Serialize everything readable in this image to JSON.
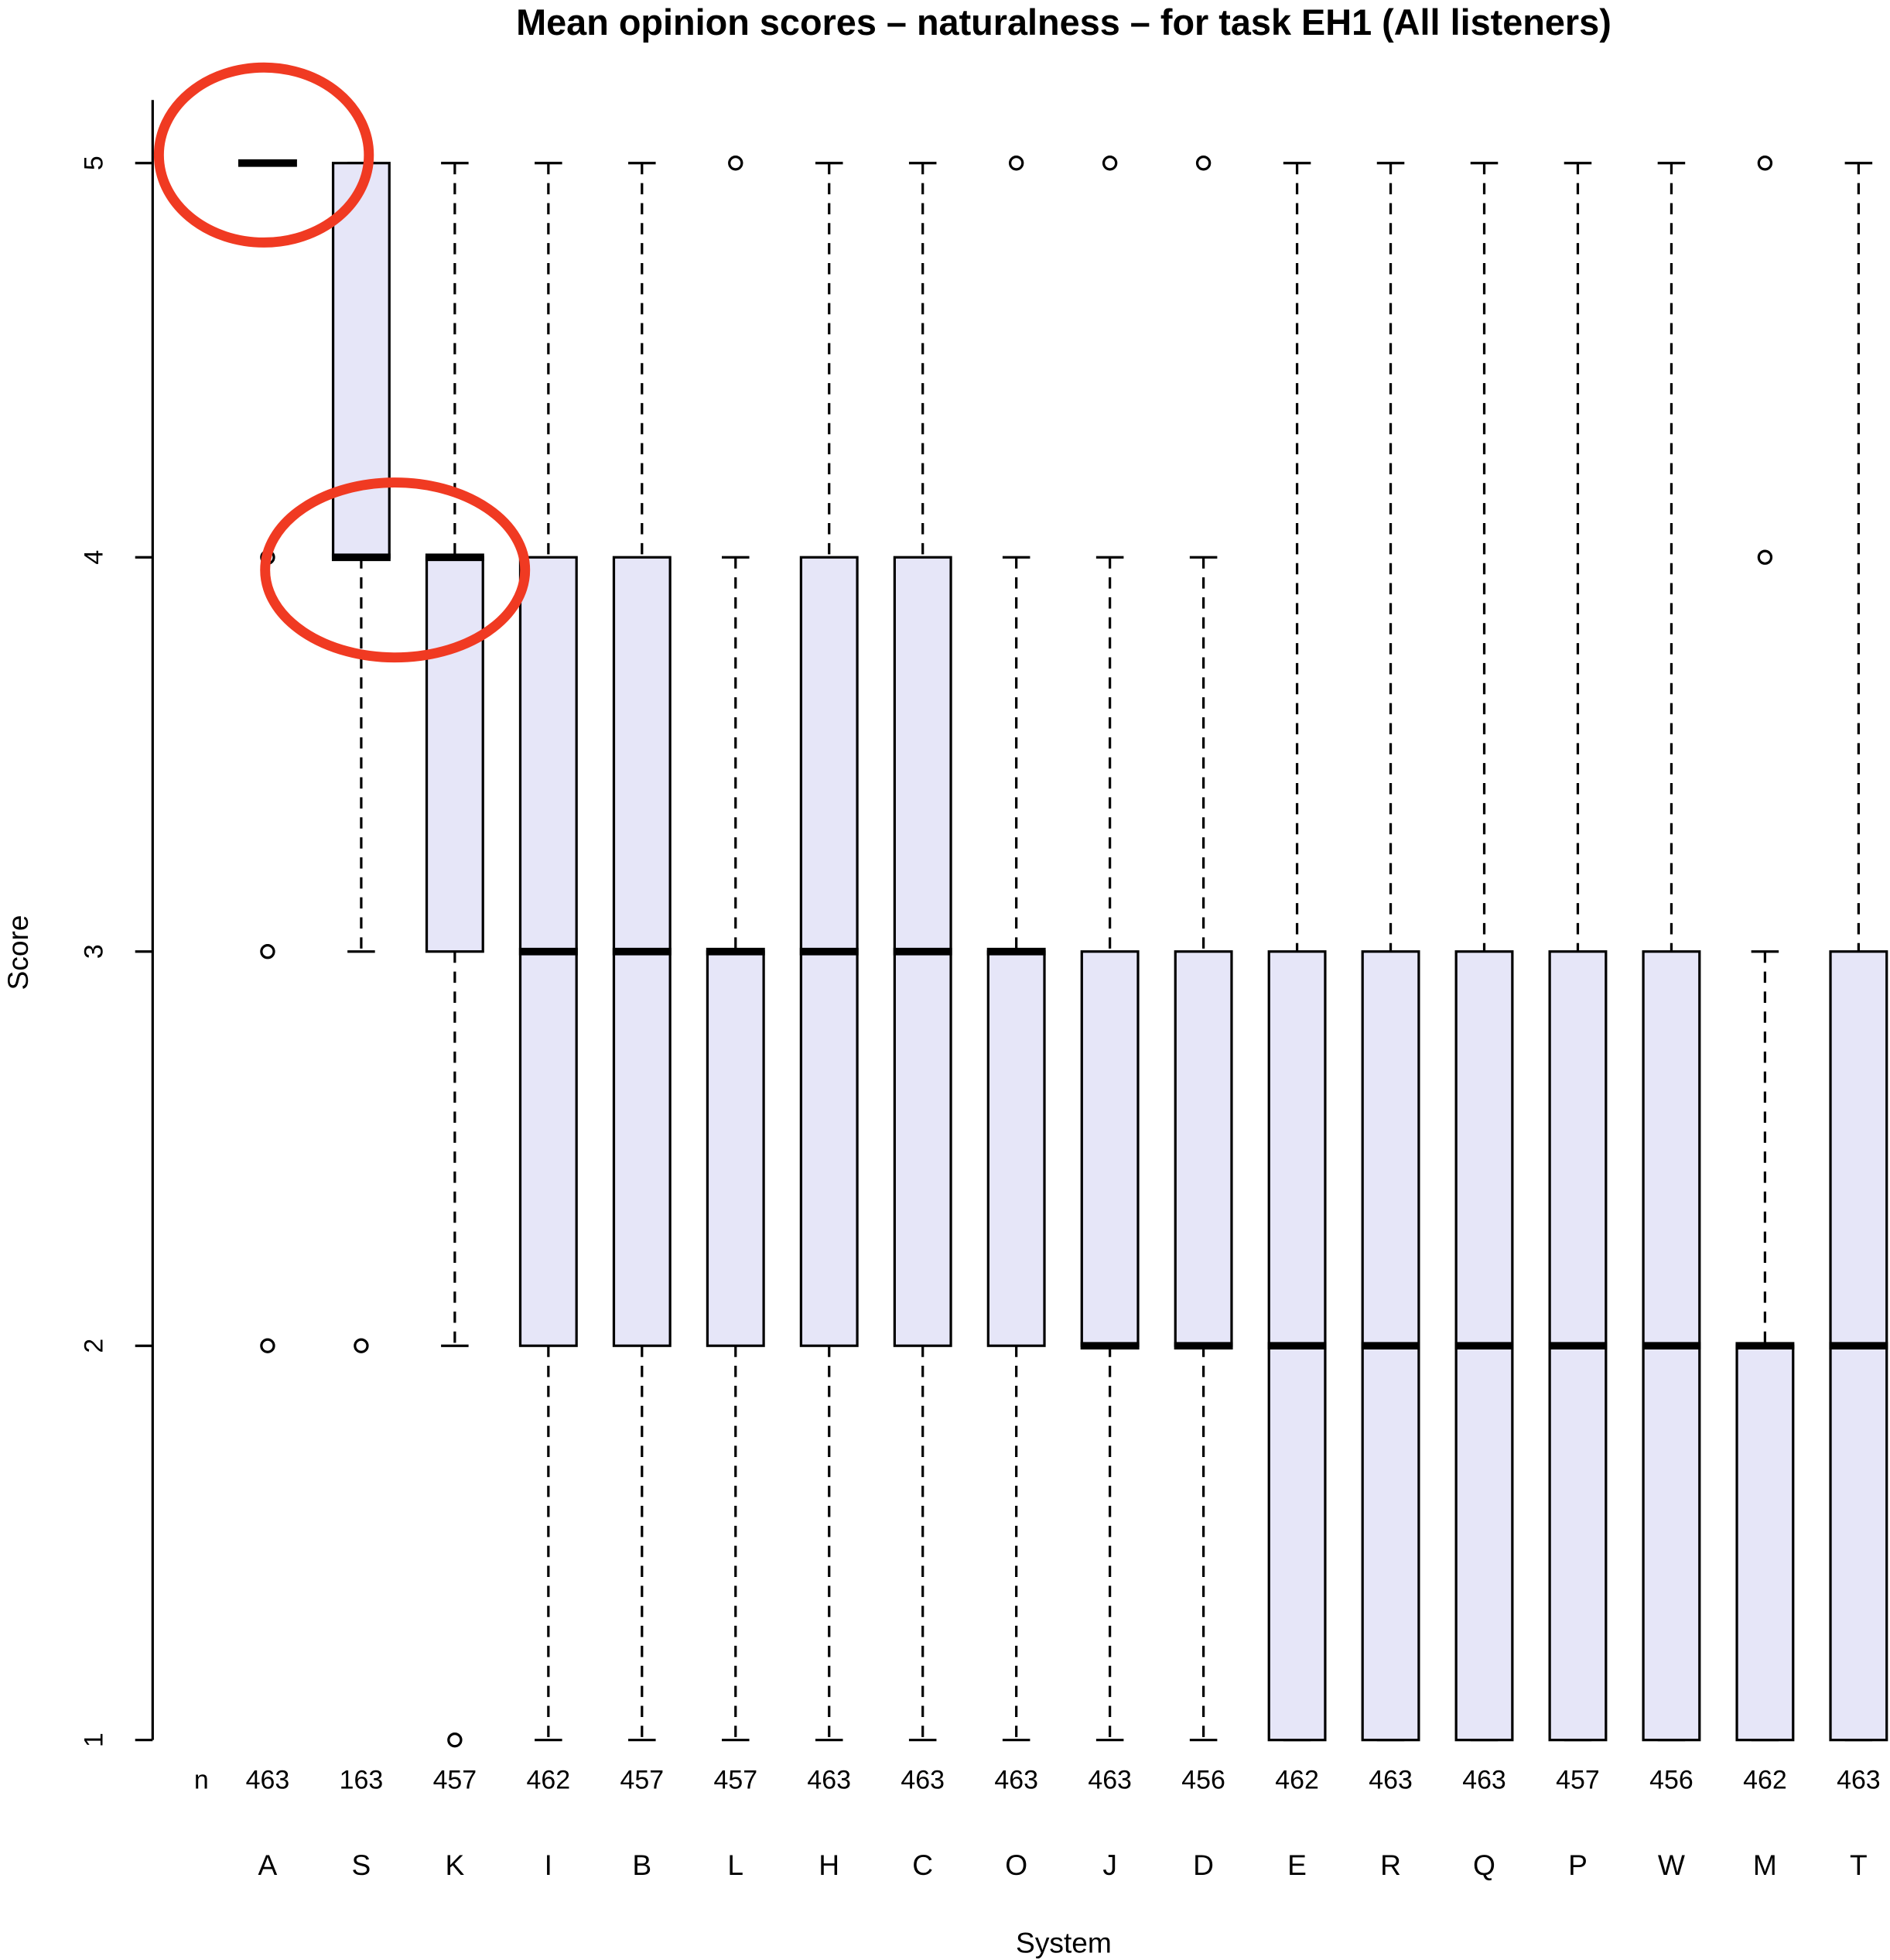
{
  "chart_data": {
    "type": "boxplot",
    "title": "Mean opinion scores – naturalness –  for task EH1 (All listeners)",
    "xlabel": "System",
    "ylabel": "Score",
    "ylim": [
      1,
      5.16
    ],
    "yticks": [
      1,
      2,
      3,
      4,
      5
    ],
    "count_label": "n",
    "categories": [
      "A",
      "S",
      "K",
      "I",
      "B",
      "L",
      "H",
      "C",
      "O",
      "J",
      "D",
      "E",
      "R",
      "Q",
      "P",
      "W",
      "M",
      "T"
    ],
    "counts": [
      463,
      163,
      457,
      462,
      457,
      457,
      463,
      463,
      463,
      463,
      456,
      462,
      463,
      463,
      457,
      456,
      462,
      463
    ],
    "box_color": "#e6e6f8",
    "boxes": [
      {
        "low": 5,
        "q1": 5,
        "median": 5,
        "q3": 5,
        "high": 5,
        "outliers": [
          4,
          3,
          2
        ]
      },
      {
        "low": 3,
        "q1": 4,
        "median": 4,
        "q3": 5,
        "high": 5,
        "outliers": [
          2
        ]
      },
      {
        "low": 2,
        "q1": 3,
        "median": 4,
        "q3": 4,
        "high": 5,
        "outliers": [
          1
        ]
      },
      {
        "low": 1,
        "q1": 2,
        "median": 3,
        "q3": 4,
        "high": 5,
        "outliers": []
      },
      {
        "low": 1,
        "q1": 2,
        "median": 3,
        "q3": 4,
        "high": 5,
        "outliers": []
      },
      {
        "low": 1,
        "q1": 2,
        "median": 3,
        "q3": 3,
        "high": 4,
        "outliers": [
          5
        ]
      },
      {
        "low": 1,
        "q1": 2,
        "median": 3,
        "q3": 4,
        "high": 5,
        "outliers": []
      },
      {
        "low": 1,
        "q1": 2,
        "median": 3,
        "q3": 4,
        "high": 5,
        "outliers": []
      },
      {
        "low": 1,
        "q1": 2,
        "median": 3,
        "q3": 3,
        "high": 4,
        "outliers": [
          5
        ]
      },
      {
        "low": 1,
        "q1": 2,
        "median": 2,
        "q3": 3,
        "high": 4,
        "outliers": [
          5
        ]
      },
      {
        "low": 1,
        "q1": 2,
        "median": 2,
        "q3": 3,
        "high": 4,
        "outliers": [
          5
        ]
      },
      {
        "low": 1,
        "q1": 1,
        "median": 2,
        "q3": 3,
        "high": 5,
        "outliers": []
      },
      {
        "low": 1,
        "q1": 1,
        "median": 2,
        "q3": 3,
        "high": 5,
        "outliers": []
      },
      {
        "low": 1,
        "q1": 1,
        "median": 2,
        "q3": 3,
        "high": 5,
        "outliers": []
      },
      {
        "low": 1,
        "q1": 1,
        "median": 2,
        "q3": 3,
        "high": 5,
        "outliers": []
      },
      {
        "low": 1,
        "q1": 1,
        "median": 2,
        "q3": 3,
        "high": 5,
        "outliers": []
      },
      {
        "low": 1,
        "q1": 1,
        "median": 2,
        "q3": 2,
        "high": 3,
        "outliers": [
          4,
          5
        ]
      },
      {
        "low": 1,
        "q1": 1,
        "median": 2,
        "q3": 3,
        "high": 5,
        "outliers": []
      }
    ]
  }
}
